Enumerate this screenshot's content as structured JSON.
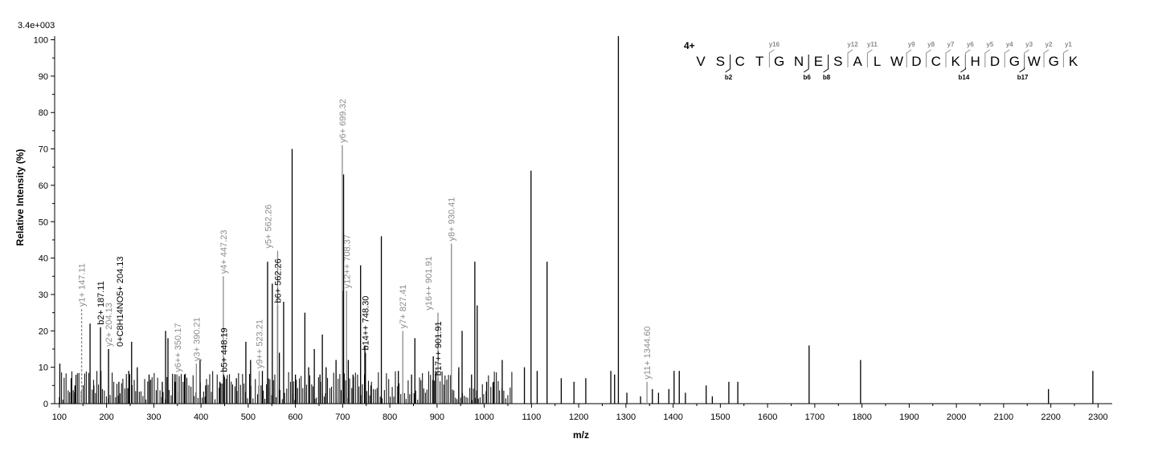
{
  "chart_data": {
    "type": "bar",
    "xlabel": "m/z",
    "ylabel": "Relative   Intensity (%)",
    "max_intensity_label": "3.4e+003",
    "xlim": [
      90,
      2330
    ],
    "ylim": [
      0,
      101
    ],
    "x_ticks": [
      100,
      200,
      300,
      400,
      500,
      600,
      700,
      800,
      900,
      1000,
      1100,
      1200,
      1300,
      1400,
      1500,
      1600,
      1700,
      1800,
      1900,
      2000,
      2100,
      2200,
      2300
    ],
    "y_ticks": [
      0,
      10,
      20,
      30,
      40,
      50,
      60,
      70,
      80,
      90,
      100
    ],
    "grey_color": "#8c8c8c",
    "black_color": "#000000",
    "annotated_peaks": [
      {
        "x": 147.11,
        "y": 26,
        "label": "y1+ 147.11",
        "color": "#8c8c8c",
        "dashed": true
      },
      {
        "x": 187.11,
        "y": 21,
        "label": "b2+ 187.11",
        "color": "#000000"
      },
      {
        "x": 204.13,
        "y": 15,
        "label": "y2+ 204.13",
        "color": "#8c8c8c"
      },
      {
        "x": 204.13,
        "y": 15,
        "label": "0+C8H14NO5+ 204.13",
        "color": "#000000",
        "label_offset": 14
      },
      {
        "x": 350.17,
        "y": 8,
        "label": "y6++ 350.17",
        "color": "#8c8c8c"
      },
      {
        "x": 390.21,
        "y": 11,
        "label": "y3+ 390.21",
        "color": "#8c8c8c"
      },
      {
        "x": 447.23,
        "y": 35,
        "label": "y4+ 447.23",
        "color": "#8c8c8c"
      },
      {
        "x": 448.19,
        "y": 8,
        "label": "b5+ 448.19",
        "color": "#000000"
      },
      {
        "x": 523.21,
        "y": 9,
        "label": "y9++ 523.21",
        "color": "#8c8c8c"
      },
      {
        "x": 562.26,
        "y": 27,
        "label": "b6+ 562.26",
        "color": "#000000"
      },
      {
        "x": 562.26,
        "y": 42,
        "label": "y5+ 562.26",
        "color": "#8c8c8c",
        "label_offset": -12
      },
      {
        "x": 699.32,
        "y": 71,
        "label": "y6+ 699.32",
        "color": "#8c8c8c"
      },
      {
        "x": 708.37,
        "y": 31,
        "label": "y12++ 708.37",
        "color": "#8c8c8c"
      },
      {
        "x": 748.3,
        "y": 14,
        "label": "b14++ 748.30",
        "color": "#000000"
      },
      {
        "x": 827.41,
        "y": 20,
        "label": "y7+ 827.41",
        "color": "#8c8c8c"
      },
      {
        "x": 901.91,
        "y": 7,
        "label": "b17++ 901.91",
        "color": "#000000"
      },
      {
        "x": 901.91,
        "y": 25,
        "label": "y16++ 901.91",
        "color": "#8c8c8c",
        "label_offset": -12
      },
      {
        "x": 930.41,
        "y": 44,
        "label": "y8+ 930.41",
        "color": "#8c8c8c"
      },
      {
        "x": 1344.6,
        "y": 6,
        "label": "y11+ 1344.60",
        "color": "#8c8c8c"
      }
    ],
    "major_peaks": [
      [
        101,
        11
      ],
      [
        125,
        7
      ],
      [
        133,
        5
      ],
      [
        165,
        22
      ],
      [
        173,
        5
      ],
      [
        188,
        9
      ],
      [
        226,
        6
      ],
      [
        247,
        9
      ],
      [
        253,
        17
      ],
      [
        265,
        10
      ],
      [
        290,
        8
      ],
      [
        318,
        6
      ],
      [
        325,
        20
      ],
      [
        330,
        18
      ],
      [
        345,
        6
      ],
      [
        365,
        8
      ],
      [
        398,
        12
      ],
      [
        410,
        5
      ],
      [
        440,
        6
      ],
      [
        475,
        7
      ],
      [
        495,
        17
      ],
      [
        505,
        12
      ],
      [
        530,
        9
      ],
      [
        541,
        39
      ],
      [
        551,
        33
      ],
      [
        566,
        14
      ],
      [
        575,
        28
      ],
      [
        593,
        70
      ],
      [
        600,
        8
      ],
      [
        620,
        25
      ],
      [
        628,
        10
      ],
      [
        640,
        15
      ],
      [
        652,
        8
      ],
      [
        657,
        19
      ],
      [
        665,
        10
      ],
      [
        686,
        12
      ],
      [
        700,
        31
      ],
      [
        702,
        63
      ],
      [
        712,
        12
      ],
      [
        722,
        8
      ],
      [
        738,
        38
      ],
      [
        747,
        16
      ],
      [
        760,
        5
      ],
      [
        782,
        46
      ],
      [
        818,
        9
      ],
      [
        846,
        8
      ],
      [
        853,
        18
      ],
      [
        892,
        13
      ],
      [
        897,
        9
      ],
      [
        946,
        10
      ],
      [
        953,
        20
      ],
      [
        973,
        8
      ],
      [
        980,
        39
      ],
      [
        985,
        27
      ],
      [
        1005,
        6
      ],
      [
        1020,
        6
      ],
      [
        1038,
        12
      ],
      [
        1085,
        10
      ],
      [
        1099,
        64
      ],
      [
        1112,
        9
      ],
      [
        1133,
        39
      ],
      [
        1163,
        7
      ],
      [
        1190,
        6
      ],
      [
        1215,
        7
      ],
      [
        1268,
        9
      ],
      [
        1276,
        8
      ],
      [
        1284,
        101
      ],
      [
        1302,
        3
      ],
      [
        1331,
        2
      ],
      [
        1356,
        4
      ],
      [
        1369,
        3
      ],
      [
        1391,
        4
      ],
      [
        1402,
        9
      ],
      [
        1413,
        9
      ],
      [
        1426,
        3
      ],
      [
        1470,
        5
      ],
      [
        1483,
        2
      ],
      [
        1518,
        6
      ],
      [
        1537,
        6
      ],
      [
        1688,
        16
      ],
      [
        1797,
        12
      ],
      [
        2195,
        4
      ],
      [
        2289,
        9
      ]
    ],
    "peptide": {
      "charge": "4+",
      "residues": [
        "V",
        "S",
        "C",
        "T",
        "G",
        "N",
        "E",
        "S",
        "A",
        "L",
        "W",
        "D",
        "C",
        "K",
        "H",
        "D",
        "G",
        "W",
        "G",
        "K"
      ],
      "b_ions": [
        {
          "after": 2,
          "label": "b2"
        },
        {
          "after": 6,
          "label": "b6"
        },
        {
          "after": 7,
          "label": "b8"
        },
        {
          "after": 14,
          "label": "b14"
        },
        {
          "after": 17,
          "label": "b17"
        }
      ],
      "y_ions": [
        {
          "after": 5,
          "label": "y16"
        },
        {
          "after": 9,
          "label": "y12"
        },
        {
          "after": 10,
          "label": "y11"
        },
        {
          "after": 12,
          "label": "y9"
        },
        {
          "after": 13,
          "label": "y8"
        },
        {
          "after": 14,
          "label": "y7"
        },
        {
          "after": 15,
          "label": "y6"
        },
        {
          "after": 16,
          "label": "y5"
        },
        {
          "after": 17,
          "label": "y4"
        },
        {
          "after": 18,
          "label": "y3"
        },
        {
          "after": 19,
          "label": "y2"
        },
        {
          "after": 20,
          "label": "y1"
        }
      ]
    }
  }
}
